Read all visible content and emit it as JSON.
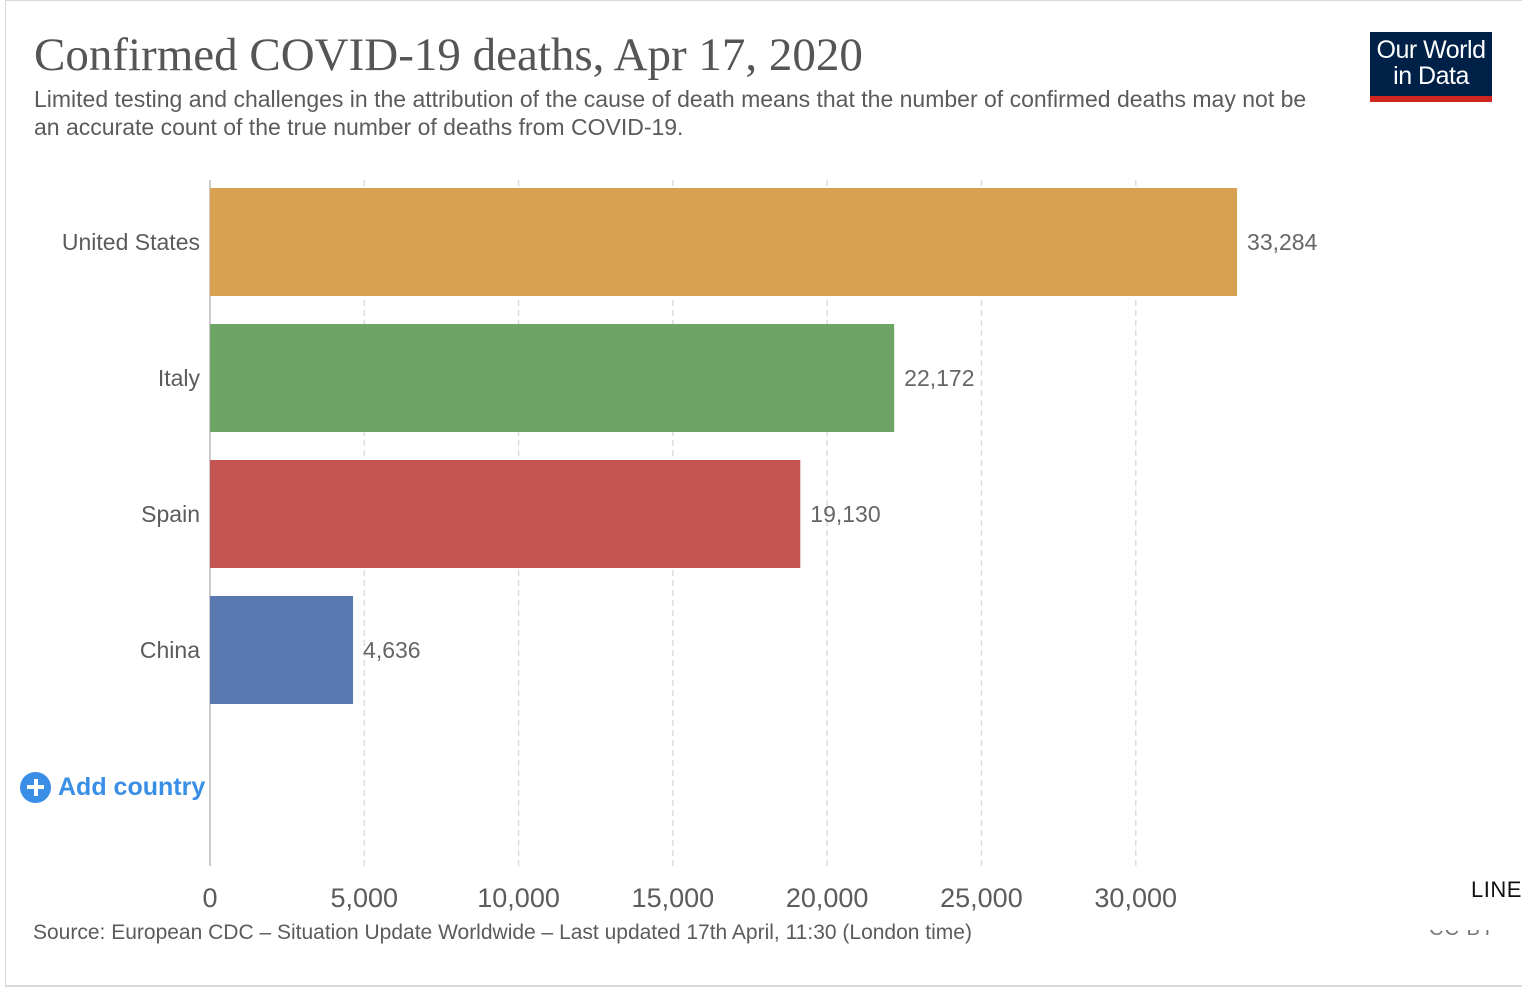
{
  "header": {
    "title": "Confirmed COVID-19 deaths, Apr 17, 2020",
    "subtitle": "Limited testing and challenges in the attribution of the cause of death means that the number of confirmed deaths may not be an accurate count of the true number of deaths from COVID-19."
  },
  "logo": {
    "line1": "Our World",
    "line2": "in Data",
    "bg_color": "#002147",
    "accent_color": "#ce261e"
  },
  "chart_data": {
    "type": "bar",
    "orientation": "horizontal",
    "categories": [
      "United States",
      "Italy",
      "Spain",
      "China"
    ],
    "values": [
      33284,
      22172,
      19130,
      4636
    ],
    "value_labels": [
      "33,284",
      "22,172",
      "19,130",
      "4,636"
    ],
    "colors": [
      "#d8a152",
      "#6ea566",
      "#c55553",
      "#5b79b1"
    ],
    "xlim": [
      0,
      35000
    ],
    "xticks": [
      0,
      5000,
      10000,
      15000,
      20000,
      25000,
      30000
    ],
    "xtick_labels": [
      "0",
      "5,000",
      "10,000",
      "15,000",
      "20,000",
      "25,000",
      "30,000"
    ],
    "grid": true,
    "grid_style": "dashed vertical"
  },
  "controls": {
    "add_country_label": "Add country",
    "add_icon": "plus-circle-icon",
    "line_tab_label": "LINE"
  },
  "footer": {
    "source": "Source: European CDC – Situation Update Worldwide – Last updated 17th April, 11:30 (London time)",
    "license": "CC BY"
  }
}
